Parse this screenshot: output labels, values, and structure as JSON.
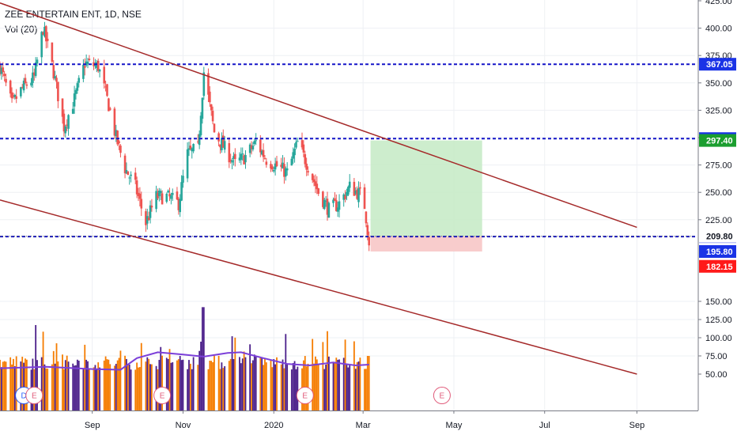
{
  "header": {
    "symbol": "ZEE ENTERTAIN ENT, 1D, NSE",
    "volume_label": "Vol (20)"
  },
  "colors": {
    "up": "#26a69a",
    "down": "#ef5350",
    "level_line": "#1515c8",
    "trendline": "#a52a2a",
    "volume_up": "#4b1f8a",
    "volume_down": "#f57c00",
    "volume_ma": "#7b3fd9",
    "profit_zone": "#c8ebc8",
    "loss_zone": "#f7c6c6",
    "tag_blue": "#1a33e6",
    "tag_green": "#1b9e2f",
    "tag_red": "#ff1a1a",
    "tag_dark": "#131722",
    "event_dividend": "#2962ff",
    "event_earnings": "#e05b7a"
  },
  "chart_data": {
    "type": "candlestick",
    "x_axis_labels": [
      "Sep",
      "Nov",
      "2020",
      "Mar",
      "May",
      "Jul",
      "Sep"
    ],
    "y_axis_labels": [
      "425.00",
      "400.00",
      "375.00",
      "350.00",
      "325.00",
      "300.00",
      "275.00",
      "250.00",
      "225.00",
      "150.00",
      "125.00",
      "100.00",
      "75.00",
      "50.00"
    ],
    "ylim": [
      50,
      425
    ],
    "horizontal_levels": [
      {
        "value": 367.05,
        "label": "367.05",
        "style": "dashed-blue"
      },
      {
        "value": 299.1,
        "label": "299.10",
        "style": "dashed-blue"
      },
      {
        "value": 209.5,
        "label": "209.50",
        "style": "dashed-blue"
      },
      {
        "value": 209.8,
        "label": "209.80",
        "style": "dotted-gray"
      }
    ],
    "price_tags": [
      {
        "value": 297.4,
        "label": "297.40",
        "color": "green"
      },
      {
        "value": 195.8,
        "label": "195.80",
        "color": "blue"
      },
      {
        "value": 182.15,
        "label": "182.15",
        "color": "red"
      }
    ],
    "channel": {
      "upper": {
        "from": [
          "2019-07-01",
          423
        ],
        "to": [
          "2020-09-01",
          218
        ]
      },
      "lower": {
        "from": [
          "2019-07-01",
          243
        ],
        "to": [
          "2020-09-01",
          50
        ]
      }
    },
    "position": {
      "start": "2020-03-06",
      "end": "2020-05-20",
      "target": 297.4,
      "entry": 209.8,
      "stop": 195.8
    },
    "events": [
      {
        "date": "2019-07-17",
        "label": "D",
        "kind": "dividend"
      },
      {
        "date": "2019-07-24",
        "label": "E",
        "kind": "earnings"
      },
      {
        "date": "2019-10-18",
        "label": "E",
        "kind": "earnings"
      },
      {
        "date": "2020-01-22",
        "label": "E",
        "kind": "earnings"
      },
      {
        "date": "2020-04-23",
        "label": "E",
        "kind": "earnings"
      }
    ],
    "price_path": [
      [
        "2019-07-01",
        365
      ],
      [
        "2019-07-09",
        330
      ],
      [
        "2019-07-16",
        345
      ],
      [
        "2019-07-24",
        355
      ],
      [
        "2019-07-30",
        400
      ],
      [
        "2019-08-06",
        360
      ],
      [
        "2019-08-13",
        310
      ],
      [
        "2019-08-20",
        335
      ],
      [
        "2019-08-27",
        368
      ],
      [
        "2019-09-05",
        365
      ],
      [
        "2019-09-12",
        330
      ],
      [
        "2019-09-17",
        300
      ],
      [
        "2019-09-23",
        272
      ],
      [
        "2019-09-30",
        255
      ],
      [
        "2019-10-07",
        222
      ],
      [
        "2019-10-14",
        246
      ],
      [
        "2019-10-21",
        246
      ],
      [
        "2019-10-29",
        240
      ],
      [
        "2019-11-04",
        285
      ],
      [
        "2019-11-11",
        290
      ],
      [
        "2019-11-15",
        360
      ],
      [
        "2019-11-22",
        305
      ],
      [
        "2019-11-29",
        290
      ],
      [
        "2019-12-06",
        276
      ],
      [
        "2019-12-13",
        283
      ],
      [
        "2019-12-20",
        296
      ],
      [
        "2019-12-27",
        280
      ],
      [
        "2020-01-03",
        274
      ],
      [
        "2020-01-10",
        268
      ],
      [
        "2020-01-17",
        295
      ],
      [
        "2020-01-24",
        274
      ],
      [
        "2020-01-31",
        250
      ],
      [
        "2020-02-07",
        234
      ],
      [
        "2020-02-14",
        240
      ],
      [
        "2020-02-21",
        255
      ],
      [
        "2020-02-28",
        248
      ],
      [
        "2020-03-02",
        238
      ],
      [
        "2020-03-05",
        205
      ]
    ],
    "volume_ma_path": [
      [
        "2019-07-01",
        58
      ],
      [
        "2019-08-01",
        60
      ],
      [
        "2019-09-01",
        57
      ],
      [
        "2019-09-20",
        56
      ],
      [
        "2019-10-01",
        72
      ],
      [
        "2019-10-15",
        80
      ],
      [
        "2019-11-01",
        77
      ],
      [
        "2019-11-15",
        74
      ],
      [
        "2019-12-01",
        79
      ],
      [
        "2019-12-10",
        80
      ],
      [
        "2019-12-25",
        72
      ],
      [
        "2020-01-10",
        64
      ],
      [
        "2020-01-25",
        62
      ],
      [
        "2020-02-10",
        66
      ],
      [
        "2020-02-25",
        62
      ],
      [
        "2020-03-05",
        63
      ]
    ]
  }
}
